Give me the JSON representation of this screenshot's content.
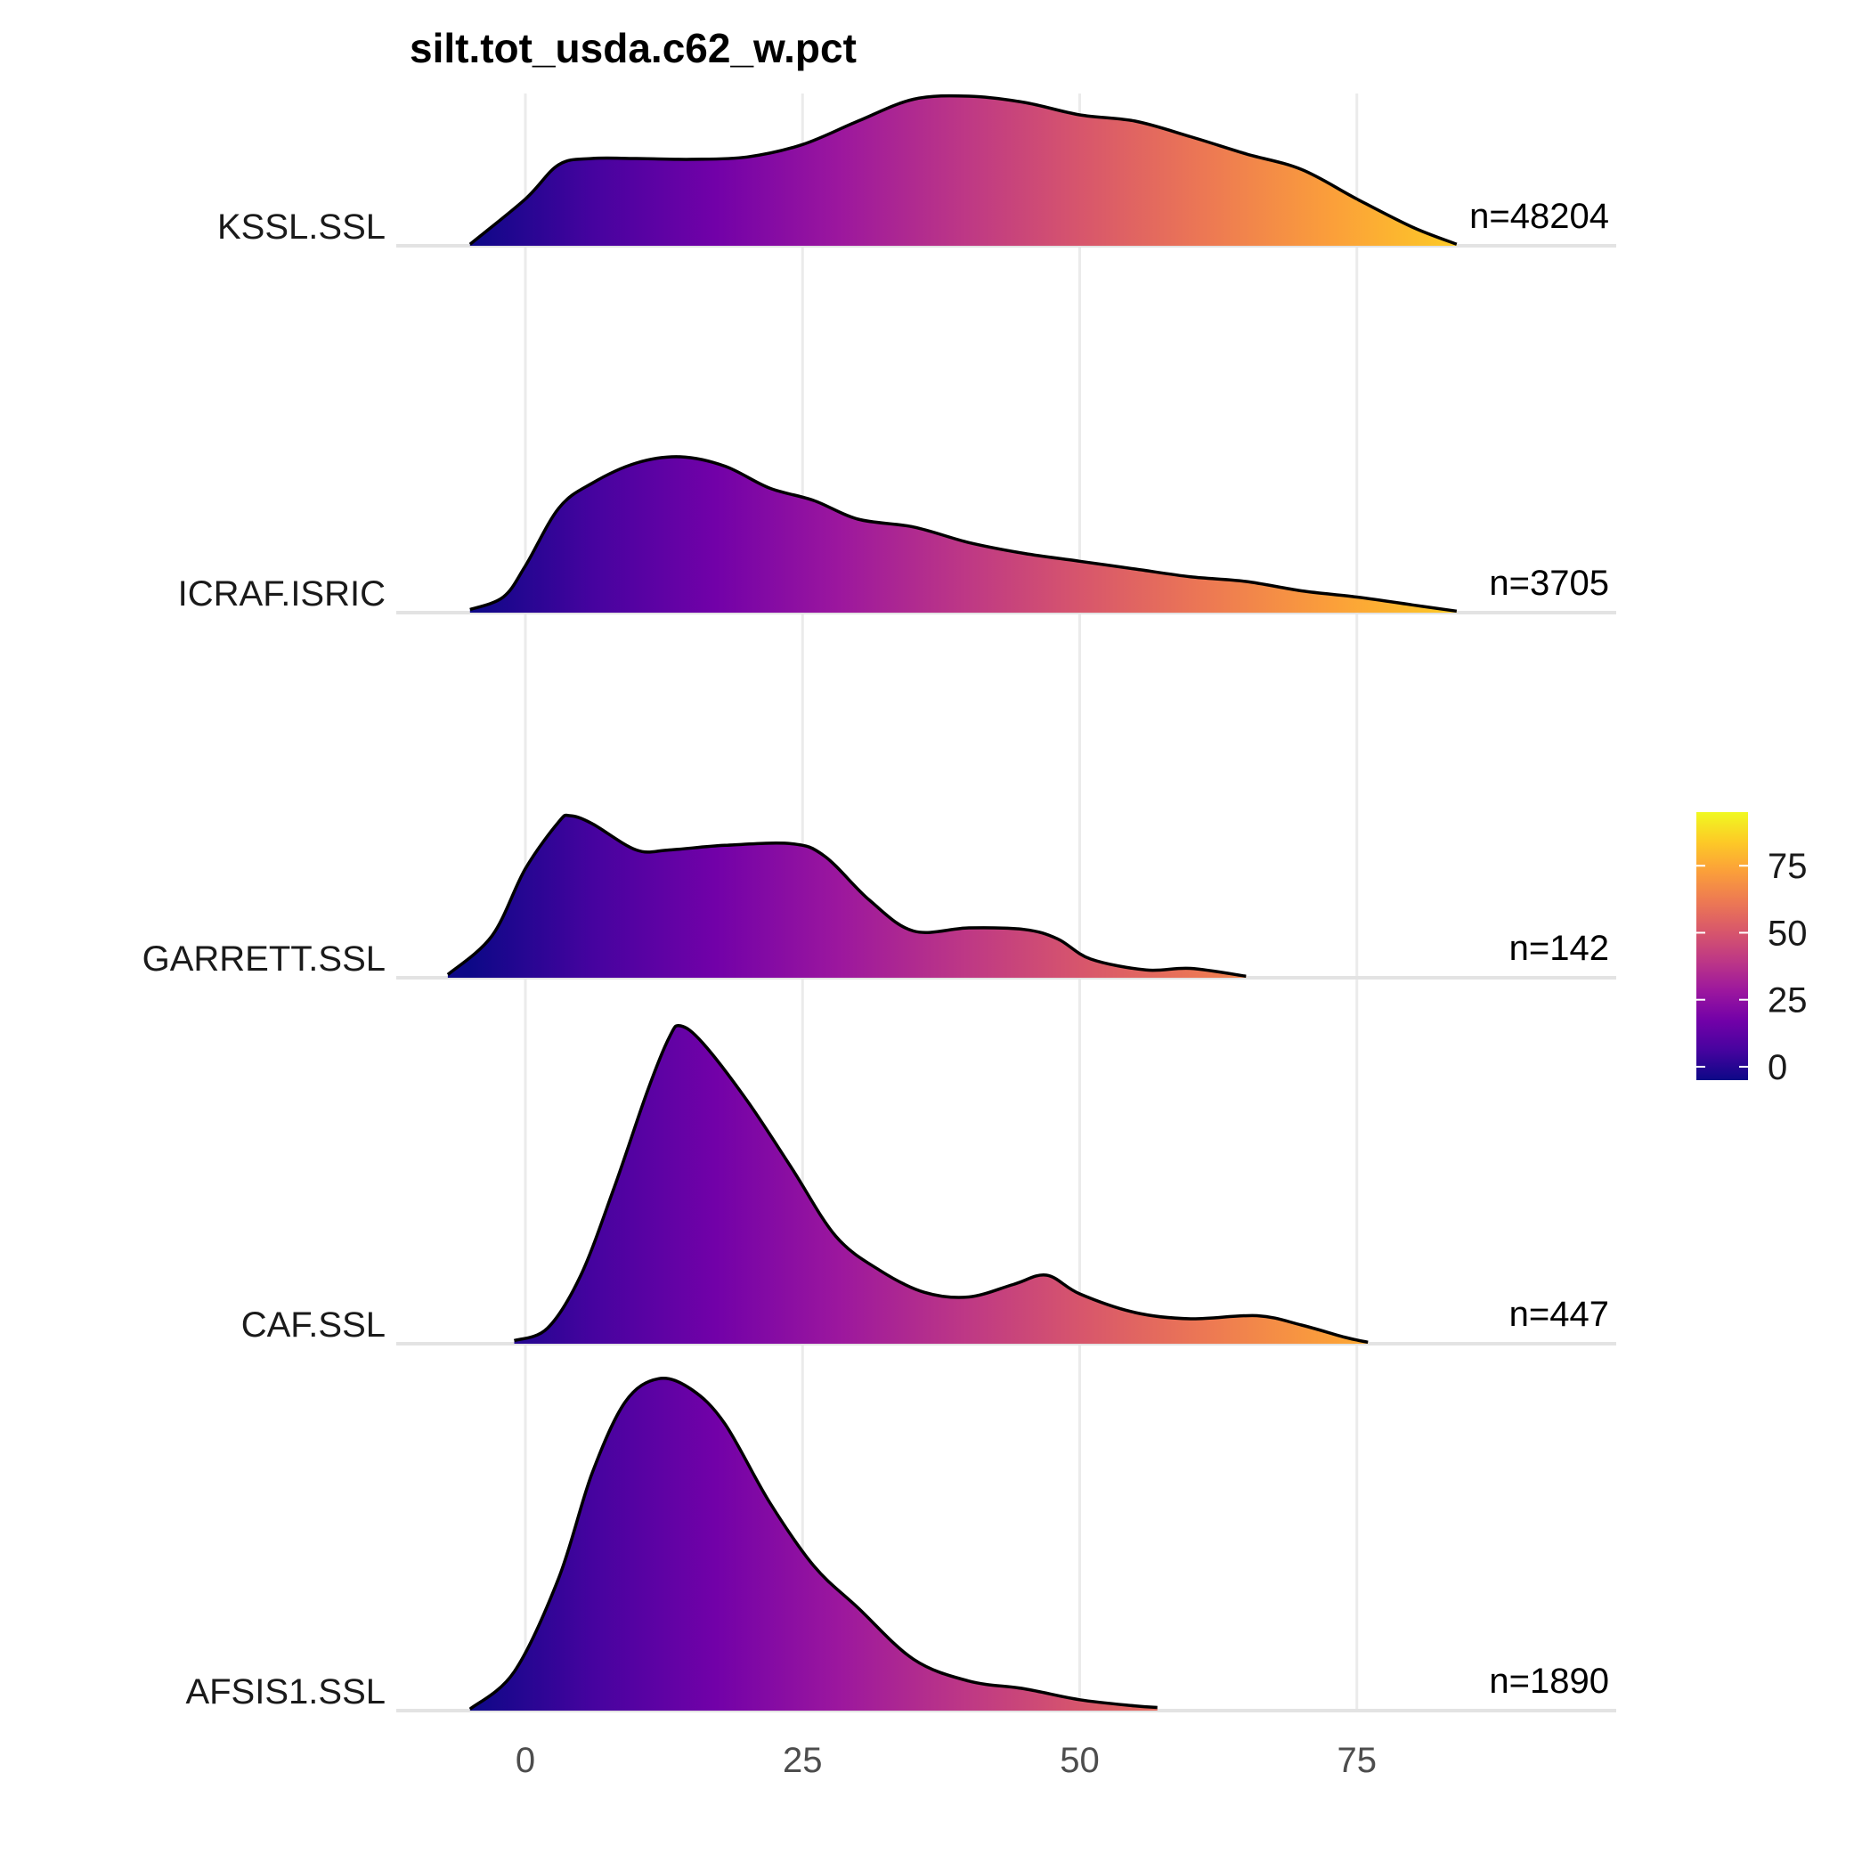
{
  "chart_data": {
    "type": "ridgeline",
    "title": "silt.tot_usda.c62_w.pct",
    "xlabel": "",
    "ylabel": "",
    "xlim": [
      -10,
      90
    ],
    "x_ticks": [
      0,
      25,
      50,
      75
    ],
    "x_tick_labels": [
      "0",
      "25",
      "50",
      "75"
    ],
    "grid": true,
    "colorbar": {
      "colorscale": "plasma",
      "range": [
        -5,
        95
      ],
      "ticks": [
        0,
        25,
        50,
        75
      ],
      "tick_labels": [
        "0",
        "25",
        "50",
        "75"
      ],
      "colors": [
        "#0d0887",
        "#46039f",
        "#7201a8",
        "#9c179e",
        "#bd3786",
        "#d8576b",
        "#ed7953",
        "#fb9f3a",
        "#fdca26",
        "#f0f921"
      ]
    },
    "series": [
      {
        "name": "KSSL.SSL",
        "n_label": "n=48204",
        "x": [
          -5,
          0,
          3,
          6,
          10,
          15,
          20,
          25,
          30,
          35,
          40,
          45,
          50,
          55,
          60,
          65,
          70,
          75,
          80,
          84
        ],
        "density": [
          0.01,
          0.3,
          0.52,
          0.56,
          0.56,
          0.555,
          0.57,
          0.65,
          0.8,
          0.94,
          0.96,
          0.92,
          0.84,
          0.8,
          0.7,
          0.59,
          0.49,
          0.3,
          0.12,
          0.01
        ]
      },
      {
        "name": "ICRAF.ISRIC",
        "n_label": "n=3705",
        "x": [
          -5,
          -2,
          0,
          3,
          6,
          10,
          14,
          18,
          22,
          26,
          30,
          35,
          40,
          45,
          50,
          55,
          60,
          65,
          70,
          75,
          80,
          84
        ],
        "density": [
          0.02,
          0.1,
          0.3,
          0.67,
          0.83,
          0.96,
          1.0,
          0.94,
          0.8,
          0.72,
          0.6,
          0.55,
          0.45,
          0.38,
          0.33,
          0.28,
          0.23,
          0.2,
          0.14,
          0.1,
          0.05,
          0.01
        ]
      },
      {
        "name": "GARRETT.SSL",
        "n_label": "n=142",
        "x": [
          -7,
          -3,
          0,
          3,
          4,
          6,
          10,
          13,
          18,
          24,
          27,
          31,
          35,
          40,
          45,
          48,
          51,
          56,
          60,
          65
        ],
        "density": [
          0.02,
          0.27,
          0.7,
          1.0,
          1.04,
          0.99,
          0.82,
          0.82,
          0.85,
          0.86,
          0.78,
          0.5,
          0.3,
          0.32,
          0.31,
          0.25,
          0.12,
          0.05,
          0.06,
          0.01
        ]
      },
      {
        "name": "CAF.SSL",
        "n_label": "n=447",
        "x": [
          -1,
          2,
          5,
          8,
          11,
          13,
          14,
          16,
          20,
          24,
          28,
          32,
          36,
          40,
          44,
          47,
          50,
          55,
          60,
          66,
          70,
          74,
          76
        ],
        "density": [
          0.02,
          0.1,
          0.44,
          1.0,
          1.62,
          1.97,
          2.04,
          1.93,
          1.56,
          1.13,
          0.69,
          0.47,
          0.33,
          0.3,
          0.38,
          0.44,
          0.32,
          0.2,
          0.16,
          0.18,
          0.12,
          0.04,
          0.01
        ]
      },
      {
        "name": "AFSIS1.SSL",
        "n_label": "n=1890",
        "x": [
          -5,
          -1,
          3,
          6,
          9,
          12,
          15,
          18,
          22,
          26,
          30,
          35,
          40,
          45,
          50,
          55,
          57
        ],
        "density": [
          0.01,
          0.25,
          0.85,
          1.52,
          1.98,
          2.13,
          2.06,
          1.84,
          1.34,
          0.93,
          0.66,
          0.33,
          0.19,
          0.14,
          0.07,
          0.03,
          0.02
        ]
      }
    ]
  }
}
